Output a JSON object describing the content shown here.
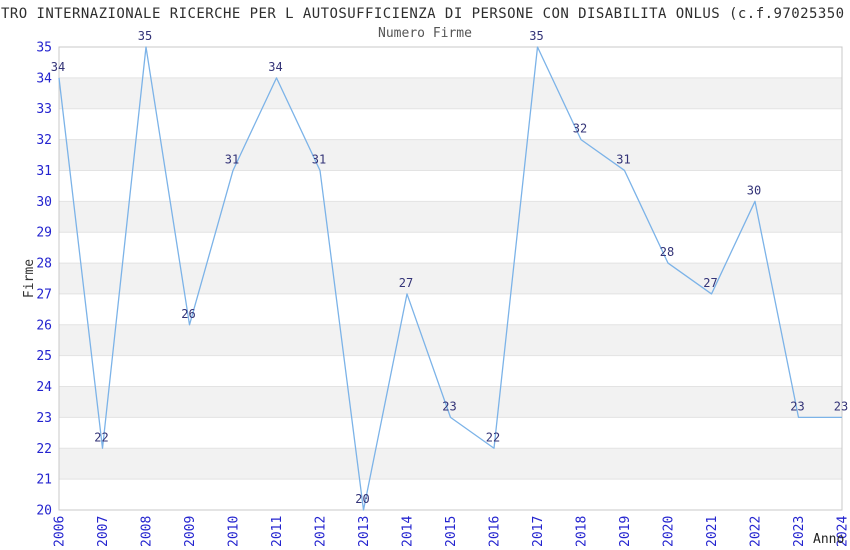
{
  "header": {
    "title": "TRO INTERNAZIONALE RICERCHE PER L AUTOSUFFICIENZA DI PERSONE CON DISABILITA ONLUS (c.f.97025350",
    "subtitle": "Numero Firme"
  },
  "chart_data": {
    "type": "line",
    "title": "Numero Firme",
    "xlabel": "Anno",
    "ylabel": "Firme",
    "categories": [
      "2006",
      "2007",
      "2008",
      "2009",
      "2010",
      "2011",
      "2012",
      "2013",
      "2014",
      "2015",
      "2016",
      "2017",
      "2018",
      "2019",
      "2020",
      "2021",
      "2022",
      "2023",
      "2024"
    ],
    "values": [
      34,
      22,
      35,
      26,
      31,
      34,
      31,
      20,
      27,
      23,
      22,
      35,
      32,
      31,
      28,
      27,
      30,
      23,
      23
    ],
    "ylim": [
      20,
      35
    ],
    "y_tick_step": 1,
    "grid": true,
    "legend_position": "none",
    "colors": {
      "line": "#7cb3e8",
      "tick_label": "#2424cf",
      "data_label": "#333377",
      "band": "#f2f2f2",
      "gridline": "#e3e3e3",
      "plot_border": "#c8c8c8",
      "axis_label": "#333333"
    }
  }
}
